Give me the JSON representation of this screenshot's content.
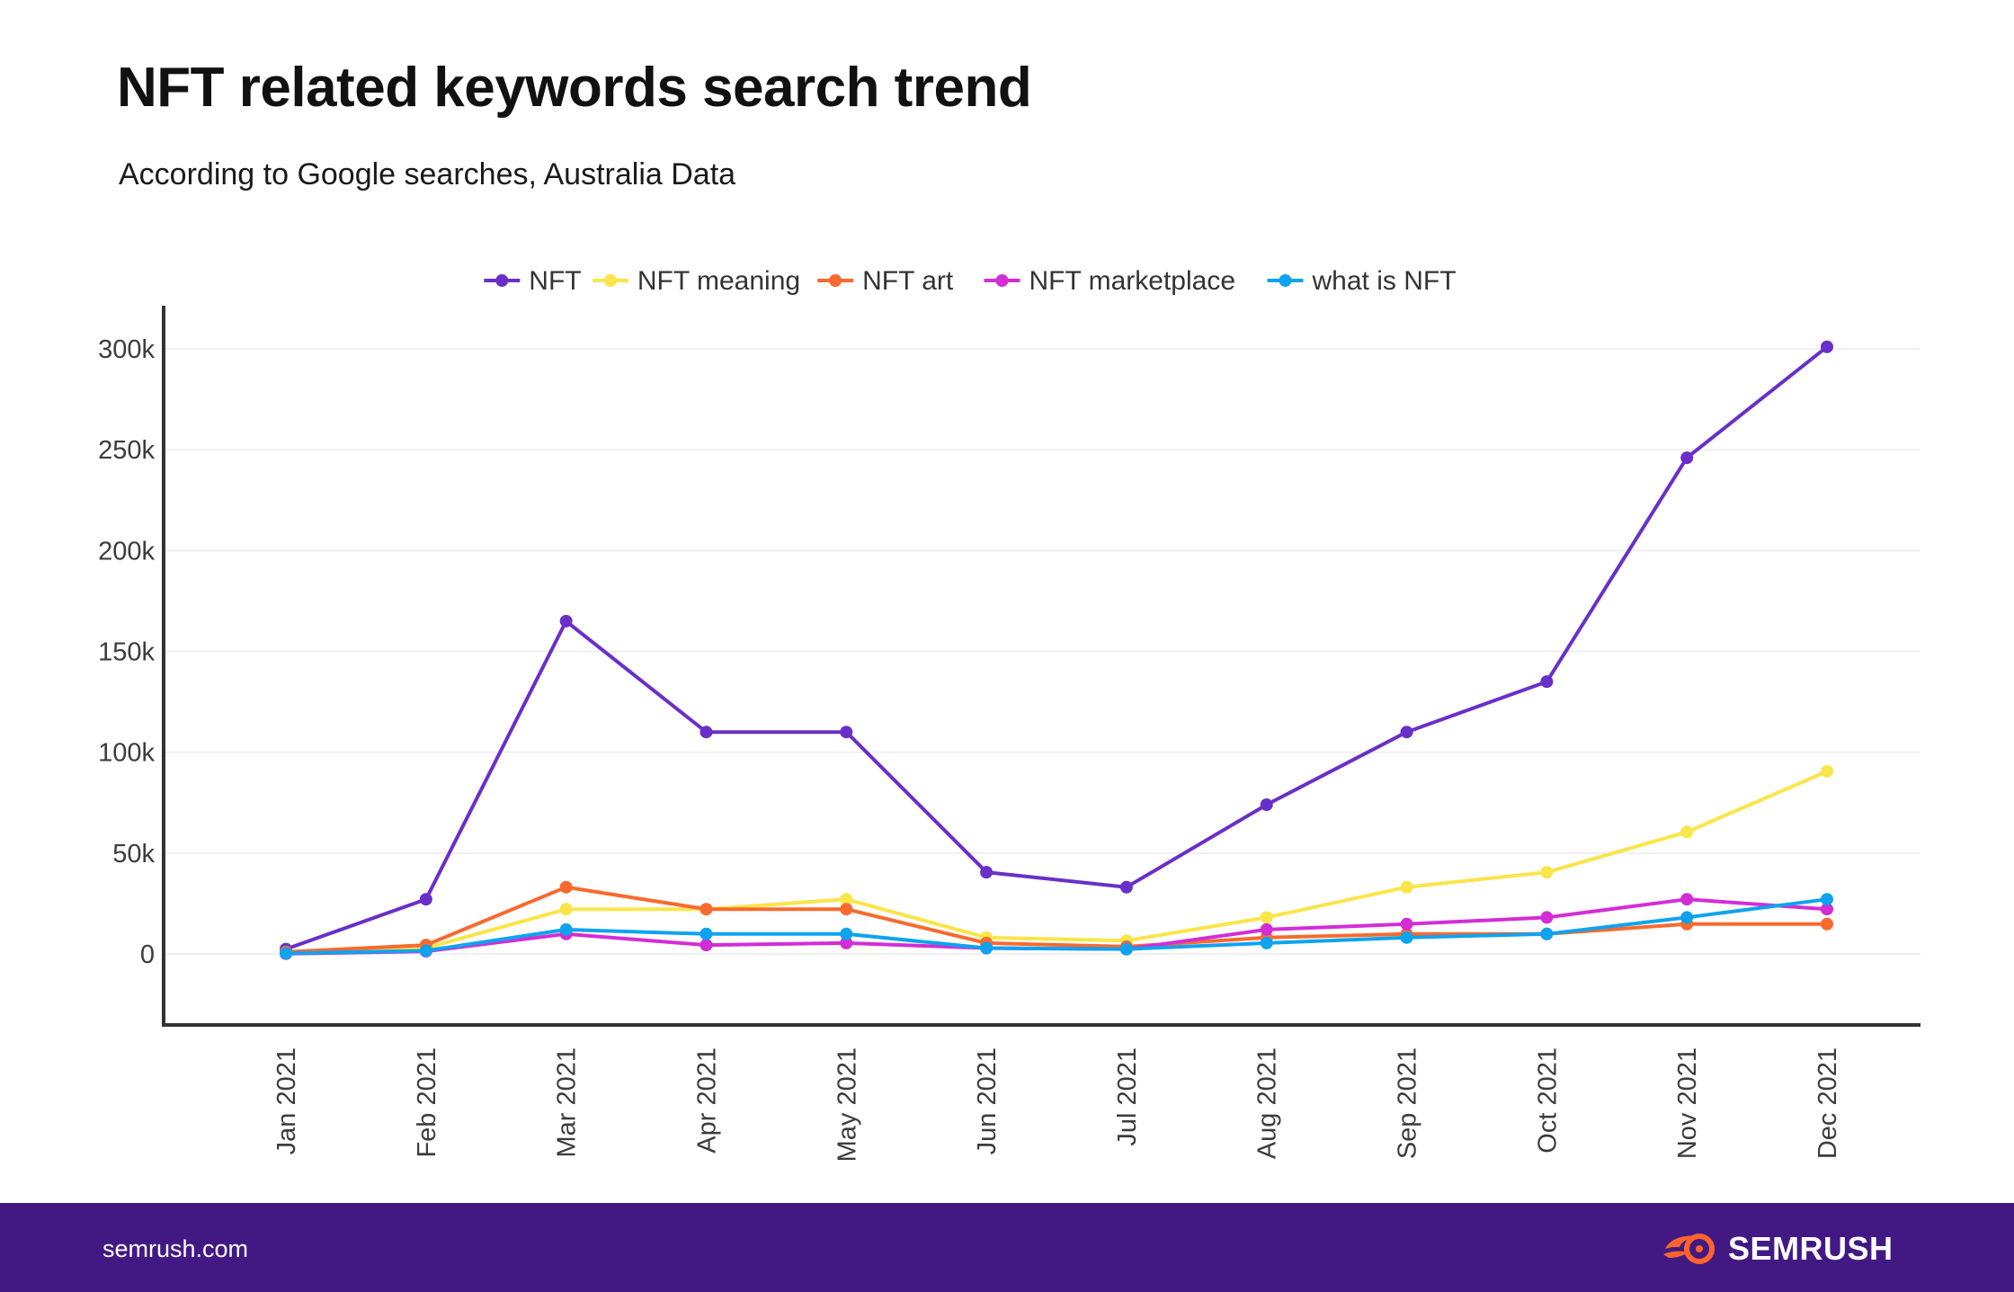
{
  "header": {
    "title": "NFT related keywords search trend",
    "subtitle": "According to Google searches, Australia Data"
  },
  "footer": {
    "site": "semrush.com",
    "brand": "SEMRUSH",
    "background": "#421983"
  },
  "chart_data": {
    "type": "line",
    "title": "NFT related keywords search trend",
    "subtitle": "According to Google searches, Australia Data",
    "xlabel": "",
    "ylabel": "",
    "categories": [
      "Jan 2021",
      "Feb 2021",
      "Mar 2021",
      "Apr 2021",
      "May 2021",
      "Jun 2021",
      "Jul 2021",
      "Aug 2021",
      "Sep 2021",
      "Oct 2021",
      "Nov 2021",
      "Dec 2021"
    ],
    "y_ticks": [
      {
        "value": 0,
        "label": "0"
      },
      {
        "value": 50000,
        "label": "50k"
      },
      {
        "value": 100000,
        "label": "100k"
      },
      {
        "value": 150000,
        "label": "150k"
      },
      {
        "value": 200000,
        "label": "200k"
      },
      {
        "value": 250000,
        "label": "250k"
      },
      {
        "value": 300000,
        "label": "300k"
      }
    ],
    "ylim": [
      -35000,
      320000
    ],
    "grid": true,
    "legend_position": "top-center",
    "series": [
      {
        "name": "NFT",
        "color": "#6a2fc8",
        "values": [
          2400,
          27100,
          165000,
          110000,
          110000,
          40500,
          33100,
          74000,
          110000,
          135000,
          246000,
          301000
        ]
      },
      {
        "name": "NFT meaning",
        "color": "#fae54a",
        "values": [
          900,
          2900,
          22200,
          22200,
          27100,
          8100,
          6600,
          18100,
          33100,
          40500,
          60500,
          90500
        ]
      },
      {
        "name": "NFT art",
        "color": "#f86a2e",
        "values": [
          1000,
          4400,
          33100,
          22200,
          22200,
          5400,
          3600,
          8100,
          9900,
          9900,
          14800,
          14800
        ]
      },
      {
        "name": "NFT marketplace",
        "color": "#d32dd6",
        "values": [
          100,
          1300,
          9900,
          4400,
          5400,
          2900,
          2400,
          12100,
          14800,
          18100,
          27100,
          22200
        ]
      },
      {
        "name": "what is NFT",
        "color": "#0fa3ee",
        "values": [
          300,
          1600,
          12100,
          9900,
          9900,
          2900,
          2400,
          5400,
          8100,
          9900,
          18100,
          27100
        ]
      }
    ]
  }
}
